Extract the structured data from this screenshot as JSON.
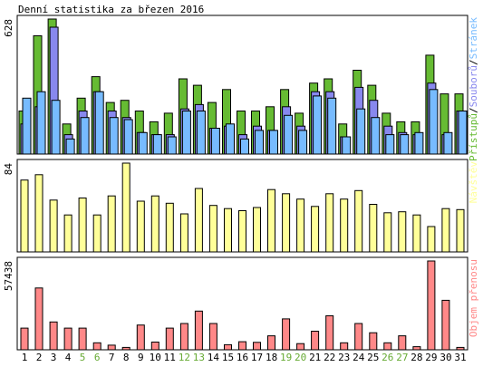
{
  "title": "Denní statistika za březen 2016",
  "colors": {
    "background": "#ffffff",
    "frame": "#000000",
    "hits": "#66bb33",
    "files": "#8888ee",
    "pages": "#77bbff",
    "visits": "#ffff99",
    "kbytes": "#ff8888",
    "weekend_label": "#66aa33",
    "weekday_label": "#000000"
  },
  "chart_data": [
    {
      "type": "bar",
      "name": "hits-files-pages",
      "scale_label": "628",
      "ymax": 628,
      "legend": {
        "hits": "Přístupů",
        "files": "Souborů",
        "pages": "Stránek",
        "sep": "/"
      },
      "x": [
        1,
        2,
        3,
        4,
        5,
        6,
        7,
        8,
        9,
        10,
        11,
        12,
        13,
        14,
        15,
        16,
        17,
        18,
        19,
        20,
        21,
        22,
        23,
        24,
        25,
        26,
        27,
        28,
        29,
        30,
        31
      ],
      "series": [
        {
          "key": "hits",
          "name": "Přístupů",
          "values": [
            200,
            550,
            628,
            140,
            260,
            360,
            240,
            250,
            200,
            150,
            190,
            350,
            320,
            240,
            300,
            200,
            200,
            220,
            300,
            190,
            330,
            350,
            140,
            390,
            320,
            190,
            150,
            150,
            460,
            280,
            280
          ]
        },
        {
          "key": "files",
          "name": "Souborů",
          "values": [
            140,
            220,
            590,
            90,
            200,
            290,
            200,
            170,
            100,
            90,
            90,
            210,
            230,
            120,
            130,
            90,
            130,
            110,
            220,
            130,
            290,
            290,
            80,
            310,
            250,
            130,
            100,
            90,
            330,
            90,
            200
          ]
        },
        {
          "key": "pages",
          "name": "Stránek",
          "values": [
            260,
            290,
            250,
            70,
            170,
            290,
            170,
            160,
            100,
            90,
            80,
            200,
            200,
            120,
            140,
            70,
            110,
            110,
            180,
            110,
            270,
            260,
            80,
            210,
            170,
            90,
            90,
            100,
            300,
            100,
            200
          ]
        }
      ]
    },
    {
      "type": "bar",
      "name": "visits",
      "scale_label": "84",
      "ymax": 84,
      "legend": {
        "visits": "Návštěv"
      },
      "x": [
        1,
        2,
        3,
        4,
        5,
        6,
        7,
        8,
        9,
        10,
        11,
        12,
        13,
        14,
        15,
        16,
        17,
        18,
        19,
        20,
        21,
        22,
        23,
        24,
        25,
        26,
        27,
        28,
        29,
        30,
        31
      ],
      "series": [
        {
          "key": "visits",
          "name": "Návštěv",
          "values": [
            68,
            73,
            49,
            35,
            51,
            35,
            53,
            84,
            48,
            53,
            46,
            36,
            60,
            44,
            41,
            39,
            42,
            59,
            55,
            50,
            43,
            55,
            50,
            58,
            45,
            37,
            38,
            35,
            24,
            41,
            40
          ]
        }
      ]
    },
    {
      "type": "bar",
      "name": "kbytes",
      "scale_label": "57438",
      "ymax": 57438,
      "legend": {
        "kbytes": "Objem přenosu"
      },
      "x": [
        1,
        2,
        3,
        4,
        5,
        6,
        7,
        8,
        9,
        10,
        11,
        12,
        13,
        14,
        15,
        16,
        17,
        18,
        19,
        20,
        21,
        22,
        23,
        24,
        25,
        26,
        27,
        28,
        29,
        30,
        31
      ],
      "series": [
        {
          "key": "kbytes",
          "name": "Objem přenosu",
          "values": [
            14000,
            40000,
            18000,
            14000,
            14000,
            4500,
            3000,
            1500,
            16000,
            5000,
            14000,
            17000,
            25000,
            17000,
            3300,
            5200,
            4800,
            9000,
            20000,
            4000,
            12000,
            22000,
            4500,
            17000,
            11000,
            4500,
            9000,
            2000,
            57438,
            32000,
            1500
          ]
        }
      ]
    }
  ],
  "weekend_days": [
    5,
    6,
    12,
    13,
    19,
    20,
    26,
    27
  ]
}
